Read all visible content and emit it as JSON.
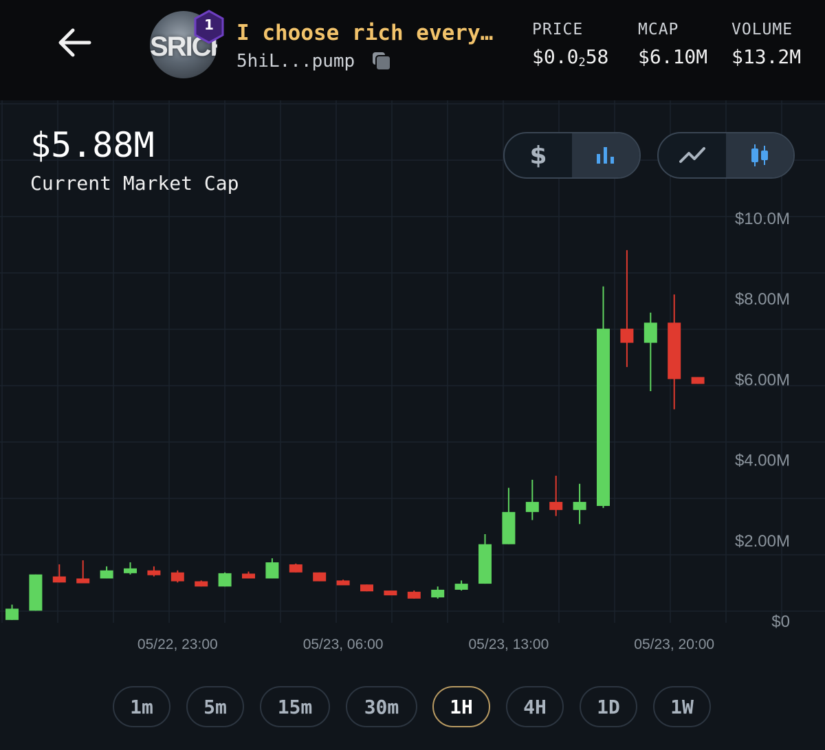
{
  "header": {
    "token_name": "I choose rich every…",
    "avatar_text": "SRICH",
    "rank_badge": "1",
    "address": "5hiL...pump",
    "stats": {
      "price_label": "PRICE",
      "price_main": "$0.0",
      "price_sub": "2",
      "price_tail": "58",
      "mcap_label": "MCAP",
      "mcap_value": "$6.10M",
      "volume_label": "VOLUME",
      "volume_value": "$13.2M"
    }
  },
  "summary": {
    "current_value": "$5.88M",
    "current_label": "Current Market Cap"
  },
  "toggles": {
    "currency": [
      {
        "name": "dollar",
        "icon": "dollar-icon",
        "active": false
      },
      {
        "name": "bar",
        "icon": "bar-chart-icon",
        "active": true
      }
    ],
    "chart_type": [
      {
        "name": "line",
        "icon": "line-chart-icon",
        "active": false
      },
      {
        "name": "candle",
        "icon": "candlestick-icon",
        "active": true
      }
    ]
  },
  "timeframes": [
    {
      "label": "1m",
      "active": false
    },
    {
      "label": "5m",
      "active": false
    },
    {
      "label": "15m",
      "active": false
    },
    {
      "label": "30m",
      "active": false
    },
    {
      "label": "1H",
      "active": true
    },
    {
      "label": "4H",
      "active": false
    },
    {
      "label": "1D",
      "active": false
    },
    {
      "label": "1W",
      "active": false
    }
  ],
  "colors": {
    "up": "#5fd45f",
    "down": "#e03a2f",
    "accent": "#f2c36b",
    "active_icon": "#4da3f0"
  },
  "chart_data": {
    "type": "candlestick",
    "y_unit": "USD (market cap)",
    "ylim": [
      0,
      10000000
    ],
    "y_ticks": [
      {
        "value": 0,
        "label": "$0"
      },
      {
        "value": 2000000,
        "label": "$2.00M"
      },
      {
        "value": 4000000,
        "label": "$4.00M"
      },
      {
        "value": 6000000,
        "label": "$6.00M"
      },
      {
        "value": 8000000,
        "label": "$8.00M"
      },
      {
        "value": 10000000,
        "label": "$10.0M"
      }
    ],
    "x_ticks": [
      {
        "index": 7,
        "label": "05/22, 23:00"
      },
      {
        "index": 14,
        "label": "05/23, 06:00"
      },
      {
        "index": 21,
        "label": "05/23, 13:00"
      },
      {
        "index": 28,
        "label": "05/23, 20:00"
      }
    ],
    "grid": true,
    "candles": [
      {
        "o": 0.02,
        "h": 0.4,
        "l": 0.02,
        "c": 0.3
      },
      {
        "o": 0.25,
        "h": 1.15,
        "l": 0.25,
        "c": 1.15
      },
      {
        "o": 1.1,
        "h": 1.4,
        "l": 0.95,
        "c": 0.95
      },
      {
        "o": 1.05,
        "h": 1.5,
        "l": 1.02,
        "c": 1.02
      },
      {
        "o": 1.05,
        "h": 1.35,
        "l": 1.05,
        "c": 1.25
      },
      {
        "o": 1.2,
        "h": 1.45,
        "l": 1.15,
        "c": 1.3
      },
      {
        "o": 1.25,
        "h": 1.35,
        "l": 1.1,
        "c": 1.15
      },
      {
        "o": 1.2,
        "h": 1.25,
        "l": 0.95,
        "c": 0.98
      },
      {
        "o": 0.98,
        "h": 1.0,
        "l": 0.85,
        "c": 0.85
      },
      {
        "o": 0.85,
        "h": 1.2,
        "l": 0.85,
        "c": 1.18
      },
      {
        "o": 1.17,
        "h": 1.22,
        "l": 1.05,
        "c": 1.05
      },
      {
        "o": 1.05,
        "h": 1.55,
        "l": 1.05,
        "c": 1.45
      },
      {
        "o": 1.4,
        "h": 1.42,
        "l": 1.2,
        "c": 1.2
      },
      {
        "o": 1.2,
        "h": 1.2,
        "l": 0.98,
        "c": 0.98
      },
      {
        "o": 1.0,
        "h": 1.02,
        "l": 0.9,
        "c": 0.9
      },
      {
        "o": 0.9,
        "h": 0.9,
        "l": 0.73,
        "c": 0.73
      },
      {
        "o": 0.75,
        "h": 0.75,
        "l": 0.7,
        "c": 0.72
      },
      {
        "o": 0.72,
        "h": 0.75,
        "l": 0.55,
        "c": 0.55
      },
      {
        "o": 0.58,
        "h": 0.85,
        "l": 0.55,
        "c": 0.77
      },
      {
        "o": 0.77,
        "h": 1.0,
        "l": 0.75,
        "c": 0.92
      },
      {
        "o": 0.92,
        "h": 2.15,
        "l": 0.92,
        "c": 1.9
      },
      {
        "o": 1.9,
        "h": 3.3,
        "l": 1.9,
        "c": 2.7
      },
      {
        "o": 2.7,
        "h": 3.5,
        "l": 2.5,
        "c": 2.95
      },
      {
        "o": 2.95,
        "h": 3.6,
        "l": 2.6,
        "c": 2.75
      },
      {
        "o": 2.75,
        "h": 3.4,
        "l": 2.4,
        "c": 2.95
      },
      {
        "o": 2.85,
        "h": 8.3,
        "l": 2.8,
        "c": 7.25
      },
      {
        "o": 7.25,
        "h": 9.2,
        "l": 6.3,
        "c": 6.9
      },
      {
        "o": 6.9,
        "h": 7.65,
        "l": 5.7,
        "c": 7.4
      },
      {
        "o": 7.4,
        "h": 8.1,
        "l": 5.25,
        "c": 6.0
      },
      {
        "o": 6.05,
        "h": 6.05,
        "l": 5.88,
        "c": 5.88
      }
    ],
    "candle_value_unit": "millions USD"
  }
}
